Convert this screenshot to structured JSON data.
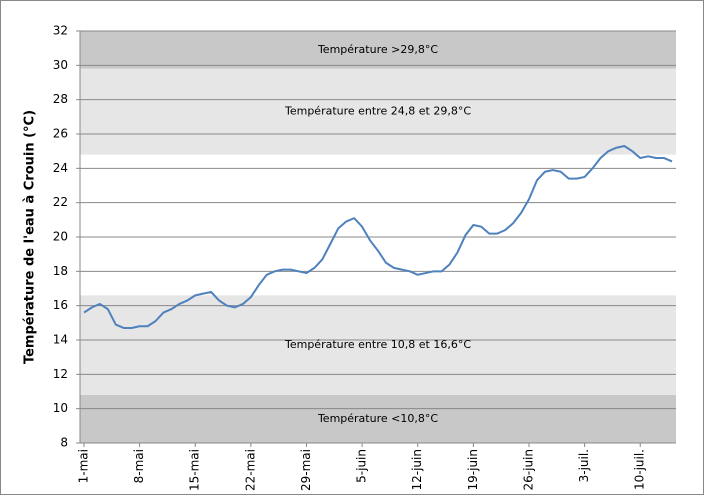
{
  "chart_data": {
    "type": "line",
    "y_label": "Température de l'eau à Crouin (°C)",
    "categories": [
      "1-mai",
      null,
      null,
      null,
      null,
      null,
      null,
      "8-mai",
      null,
      null,
      null,
      null,
      null,
      null,
      "15-mai",
      null,
      null,
      null,
      null,
      null,
      null,
      "22-mai",
      null,
      null,
      null,
      null,
      null,
      null,
      "29-mai",
      null,
      null,
      null,
      null,
      null,
      null,
      "5-juin",
      null,
      null,
      null,
      null,
      null,
      null,
      "12-juin",
      null,
      null,
      null,
      null,
      null,
      null,
      "19-juin",
      null,
      null,
      null,
      null,
      null,
      null,
      "26-juin",
      null,
      null,
      null,
      null,
      null,
      null,
      "3-juil.",
      null,
      null,
      null,
      null,
      null,
      null,
      "10-juil.",
      null,
      null,
      null,
      null
    ],
    "series": [
      {
        "color": "#4f81bd",
        "values": [
          15.6,
          15.9,
          16.1,
          15.8,
          14.9,
          14.7,
          14.7,
          14.8,
          14.8,
          15.1,
          15.6,
          15.8,
          16.1,
          16.3,
          16.6,
          16.7,
          16.8,
          16.3,
          16.0,
          15.9,
          16.1,
          16.5,
          17.2,
          17.8,
          18.0,
          18.1,
          18.1,
          18.0,
          17.9,
          18.2,
          18.7,
          19.6,
          20.5,
          20.9,
          21.1,
          20.6,
          19.8,
          19.2,
          18.5,
          18.2,
          18.1,
          18.0,
          17.8,
          17.9,
          18.0,
          18.0,
          18.4,
          19.1,
          20.1,
          20.7,
          20.6,
          20.2,
          20.2,
          20.4,
          20.8,
          21.4,
          22.2,
          23.3,
          23.8,
          23.9,
          23.8,
          23.4,
          23.4,
          23.5,
          24.0,
          24.6,
          25.0,
          25.2,
          25.3,
          25.0,
          24.6,
          24.7,
          24.6,
          24.6,
          24.4
        ]
      }
    ],
    "bands": [
      {
        "label": "Température >29,8°C",
        "from": 29.8,
        "to": 32,
        "color": "#c8c8c8"
      },
      {
        "label": "Température entre 24,8 et 29,8°C",
        "from": 24.8,
        "to": 29.8,
        "color": "#e6e6e6"
      },
      {
        "label": "Température entre 10,8 et 16,6°C",
        "from": 10.8,
        "to": 16.6,
        "color": "#e6e6e6"
      },
      {
        "label": "Température <10,8°C",
        "from": 8,
        "to": 10.8,
        "color": "#c8c8c8"
      }
    ],
    "ylim": [
      8,
      32
    ],
    "yticks": [
      8,
      10,
      12,
      14,
      16,
      18,
      20,
      22,
      24,
      26,
      28,
      30,
      32
    ],
    "grid": true
  }
}
